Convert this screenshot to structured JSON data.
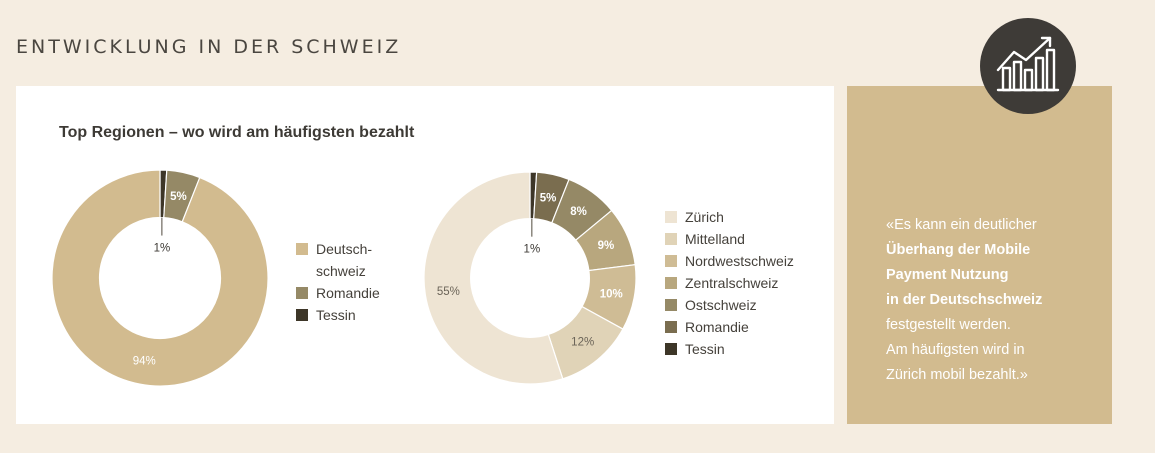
{
  "section_title": "ENTWICKLUNG IN DER SCHWEIZ",
  "chart_title": "Top Regionen – wo wird am häufigsten bezahlt",
  "chart_data": [
    {
      "type": "pie",
      "title": "Top Regionen – wo wird am häufigsten bezahlt",
      "slices": [
        {
          "label": "Tessin",
          "value": 1,
          "display": "1%",
          "color": "#3d3628"
        },
        {
          "label": "Romandie",
          "value": 5,
          "display": "5%",
          "color": "#958966"
        },
        {
          "label": "Deutschschweiz",
          "value": 94,
          "display": "94%",
          "color": "#d2bb8f"
        }
      ],
      "legend": [
        {
          "label": "Deutsch-\nschweiz",
          "color": "#d2bb8f"
        },
        {
          "label": "Romandie",
          "color": "#958966"
        },
        {
          "label": "Tessin",
          "color": "#3d3628"
        }
      ],
      "legend_position": "right"
    },
    {
      "type": "pie",
      "slices": [
        {
          "label": "Tessin",
          "value": 1,
          "display": "1%",
          "color": "#3d3628"
        },
        {
          "label": "Romandie",
          "value": 5,
          "display": "5%",
          "color": "#7a6d4f"
        },
        {
          "label": "Ostschweiz",
          "value": 8,
          "display": "8%",
          "color": "#958966"
        },
        {
          "label": "Zentralschweiz",
          "value": 9,
          "display": "9%",
          "color": "#b8a77e"
        },
        {
          "label": "Nordwestschweiz",
          "value": 10,
          "display": "10%",
          "color": "#cfbc95"
        },
        {
          "label": "Mittelland",
          "value": 12,
          "display": "12%",
          "color": "#e0d3b7"
        },
        {
          "label": "Zürich",
          "value": 55,
          "display": "55%",
          "color": "#eee4d3"
        }
      ],
      "legend": [
        {
          "label": "Zürich",
          "color": "#eee4d3"
        },
        {
          "label": "Mittelland",
          "color": "#e0d3b7"
        },
        {
          "label": "Nordwestschweiz",
          "color": "#cfbc95"
        },
        {
          "label": "Zentralschweiz",
          "color": "#b8a77e"
        },
        {
          "label": "Ostschweiz",
          "color": "#958966"
        },
        {
          "label": "Romandie",
          "color": "#7a6d4f"
        },
        {
          "label": "Tessin",
          "color": "#3d3628"
        }
      ],
      "legend_position": "right"
    }
  ],
  "quote": {
    "open": "«Es kann ein deutlicher",
    "bold1": "Überhang der Mobile",
    "bold2": "Payment Nutzung",
    "bold3": "in der Deutschschweiz",
    "line5": "festgestellt werden.",
    "line6": "Am häufigsten wird in",
    "line7": "Zürich mobil bezahlt.»"
  },
  "icon": "growth-chart-icon",
  "colors": {
    "background": "#f5ede1",
    "accent": "#d2bb8f",
    "badge": "#3e3b37"
  }
}
